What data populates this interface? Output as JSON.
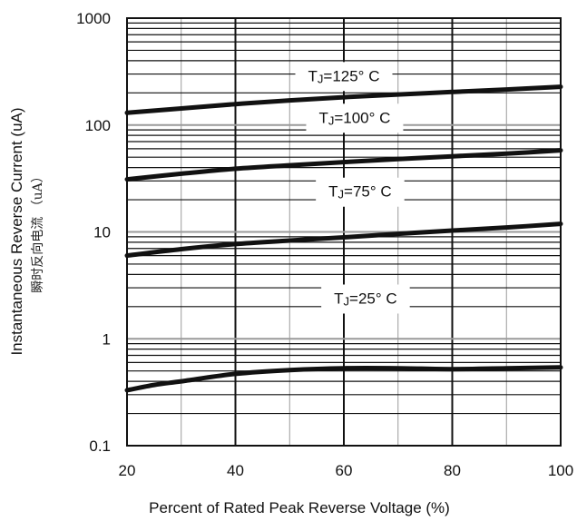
{
  "chart_data": {
    "type": "line",
    "xlabel": "Percent of Rated Peak Reverse Voltage (%)",
    "ylabel": "Instantaneous Reverse Current (uA)",
    "ylabel_secondary": "瞬时反向电流 （uA）",
    "xlim": [
      20,
      100
    ],
    "ylim": [
      0.1,
      1000
    ],
    "y_scale": "log",
    "grid": true,
    "x_ticks": [
      "20",
      "40",
      "60",
      "80",
      "100"
    ],
    "y_ticks": [
      "0.1",
      "1",
      "10",
      "100",
      "1000"
    ],
    "series": [
      {
        "name": "TJ=125° C",
        "label_main": "T",
        "label_sub": "J",
        "label_rest": "=125° C",
        "label_x": 60,
        "label_y": 290,
        "x": [
          20,
          30,
          40,
          50,
          60,
          70,
          80,
          90,
          100
        ],
        "y": [
          130,
          143,
          157,
          170,
          182,
          193,
          204,
          215,
          228
        ]
      },
      {
        "name": "TJ=100° C",
        "label_main": "T",
        "label_sub": "J",
        "label_rest": "=100° C",
        "label_x": 62,
        "label_y": 118,
        "x": [
          20,
          30,
          40,
          50,
          60,
          70,
          80,
          90,
          100
        ],
        "y": [
          31,
          35,
          39,
          42,
          45,
          48,
          51,
          54,
          58
        ]
      },
      {
        "name": "TJ=75° C",
        "label_main": "T",
        "label_sub": "J",
        "label_rest": "=75° C",
        "label_x": 63,
        "label_y": 24,
        "x": [
          20,
          30,
          40,
          50,
          60,
          70,
          80,
          90,
          100
        ],
        "y": [
          6.0,
          6.9,
          7.7,
          8.3,
          8.9,
          9.6,
          10.3,
          11.0,
          11.9
        ]
      },
      {
        "name": "TJ=25° C",
        "label_main": "T",
        "label_sub": "J",
        "label_rest": "=25° C",
        "label_x": 64,
        "label_y": 2.4,
        "x": [
          20,
          25,
          30,
          40,
          50,
          60,
          70,
          80,
          90,
          100
        ],
        "y": [
          0.33,
          0.37,
          0.4,
          0.47,
          0.51,
          0.53,
          0.53,
          0.52,
          0.53,
          0.54
        ]
      }
    ],
    "colors": {
      "line": "#111111",
      "grid": "#111111",
      "grid_minor": "#9a9a9a",
      "background": "#ffffff"
    }
  }
}
